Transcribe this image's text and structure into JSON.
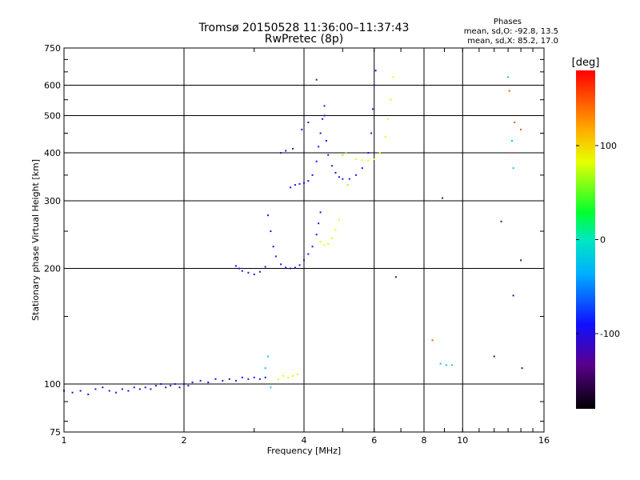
{
  "header": {
    "title_line1": "Tromsø 20150528 11:36:00–11:37:43",
    "title_line2": "RwPretec (8p)"
  },
  "phases_info": {
    "heading": "Phases",
    "line1": "mean, sd,O: -92.8, 13.5",
    "line2": "mean, sd,X:  85.2, 17.0"
  },
  "colorbar": {
    "label": "[deg]",
    "range": [
      -180,
      180
    ],
    "ticks": [
      {
        "value": 100,
        "label": "100"
      },
      {
        "value": 0,
        "label": "0"
      },
      {
        "value": -100,
        "label": "-100"
      }
    ]
  },
  "chart_data": {
    "type": "scatter",
    "title": "Tromsø 20150528 11:36:00–11:37:43",
    "subtitle": "RwPretec (8p)",
    "xlabel": "Frequency [MHz]",
    "ylabel": "Stationary phase Virtual Height [km]",
    "xscale": "log",
    "yscale": "log",
    "xlim": [
      1,
      16
    ],
    "ylim": [
      75,
      750
    ],
    "x_ticks": [
      1,
      2,
      4,
      6,
      8,
      10,
      16
    ],
    "y_ticks": [
      75,
      100,
      200,
      300,
      400,
      500,
      600,
      750
    ],
    "grid": true,
    "series": [
      {
        "color_value": -95,
        "points": [
          [
            1.0,
            96
          ],
          [
            1.05,
            95
          ],
          [
            1.1,
            96
          ],
          [
            1.15,
            94
          ],
          [
            1.2,
            97
          ],
          [
            1.25,
            98
          ],
          [
            1.3,
            96
          ],
          [
            1.35,
            95
          ],
          [
            1.4,
            97
          ],
          [
            1.45,
            96
          ],
          [
            1.5,
            98
          ],
          [
            1.55,
            97
          ],
          [
            1.6,
            98
          ],
          [
            1.65,
            97
          ],
          [
            1.7,
            99
          ],
          [
            1.75,
            100
          ],
          [
            1.8,
            98
          ],
          [
            1.85,
            99
          ],
          [
            1.9,
            100
          ],
          [
            1.95,
            98
          ],
          [
            2.0,
            100
          ],
          [
            2.05,
            99
          ],
          [
            2.1,
            101
          ],
          [
            2.2,
            102
          ],
          [
            2.3,
            101
          ],
          [
            2.4,
            103
          ],
          [
            2.5,
            102
          ],
          [
            2.6,
            103
          ],
          [
            2.7,
            102
          ],
          [
            2.8,
            104
          ],
          [
            2.9,
            103
          ],
          [
            3.0,
            104
          ],
          [
            3.1,
            103
          ],
          [
            3.2,
            104
          ]
        ]
      },
      {
        "color_value": -95,
        "points": [
          [
            2.7,
            203
          ],
          [
            2.75,
            200
          ],
          [
            2.8,
            197
          ],
          [
            2.9,
            195
          ],
          [
            3.0,
            193
          ],
          [
            3.1,
            196
          ],
          [
            3.2,
            202
          ]
        ]
      },
      {
        "color_value": -95,
        "points": [
          [
            3.25,
            275
          ],
          [
            3.3,
            250
          ],
          [
            3.35,
            228
          ],
          [
            3.4,
            215
          ],
          [
            3.5,
            205
          ],
          [
            3.6,
            201
          ],
          [
            3.7,
            200
          ],
          [
            3.8,
            201
          ],
          [
            3.9,
            204
          ],
          [
            4.0,
            210
          ],
          [
            4.1,
            218
          ],
          [
            4.2,
            228
          ],
          [
            4.3,
            245
          ],
          [
            4.35,
            262
          ],
          [
            4.4,
            280
          ]
        ]
      },
      {
        "color_value": -95,
        "points": [
          [
            3.7,
            325
          ],
          [
            3.8,
            330
          ],
          [
            3.9,
            332
          ],
          [
            4.0,
            334
          ],
          [
            4.1,
            338
          ],
          [
            4.2,
            350
          ],
          [
            4.3,
            380
          ],
          [
            4.35,
            415
          ],
          [
            4.4,
            450
          ],
          [
            4.45,
            490
          ],
          [
            4.5,
            530
          ]
        ]
      },
      {
        "color_value": -95,
        "points": [
          [
            4.5,
            500
          ],
          [
            4.55,
            430
          ],
          [
            4.6,
            395
          ],
          [
            4.7,
            370
          ],
          [
            4.8,
            355
          ],
          [
            4.9,
            346
          ],
          [
            5.0,
            342
          ],
          [
            5.2,
            342
          ],
          [
            5.4,
            350
          ],
          [
            5.6,
            365
          ],
          [
            5.8,
            400
          ],
          [
            5.9,
            450
          ],
          [
            5.95,
            520
          ],
          [
            6.0,
            600
          ],
          [
            6.05,
            655
          ]
        ]
      },
      {
        "color_value": -100,
        "points": [
          [
            3.5,
            400
          ],
          [
            3.6,
            405
          ],
          [
            3.75,
            410
          ],
          [
            3.95,
            460
          ],
          [
            4.1,
            480
          ],
          [
            4.3,
            620
          ]
        ]
      },
      {
        "color_value": 80,
        "points": [
          [
            3.45,
            103
          ],
          [
            3.55,
            105
          ],
          [
            3.65,
            104
          ],
          [
            3.75,
            105
          ],
          [
            3.85,
            106
          ]
        ]
      },
      {
        "color_value": 80,
        "points": [
          [
            4.4,
            235
          ],
          [
            4.5,
            230
          ],
          [
            4.6,
            232
          ],
          [
            4.7,
            240
          ],
          [
            4.8,
            252
          ],
          [
            4.9,
            268
          ]
        ]
      },
      {
        "color_value": 80,
        "points": [
          [
            5.4,
            385
          ],
          [
            5.6,
            383
          ],
          [
            5.8,
            382
          ],
          [
            6.0,
            385
          ],
          [
            6.2,
            400
          ],
          [
            6.4,
            440
          ],
          [
            6.5,
            490
          ],
          [
            6.6,
            550
          ],
          [
            6.7,
            630
          ]
        ]
      },
      {
        "color_value": 60,
        "points": [
          [
            5.0,
            395
          ],
          [
            5.1,
            400
          ],
          [
            5.15,
            330
          ]
        ]
      },
      {
        "color_value": -20,
        "points": [
          [
            3.2,
            110
          ],
          [
            3.25,
            118
          ],
          [
            3.3,
            98
          ],
          [
            8.8,
            113
          ],
          [
            9.1,
            112
          ],
          [
            9.4,
            112
          ],
          [
            13.0,
            630
          ],
          [
            13.3,
            430
          ],
          [
            13.4,
            365
          ]
        ]
      },
      {
        "color_value": 150,
        "points": [
          [
            13.1,
            580
          ],
          [
            13.5,
            480
          ],
          [
            14.0,
            460
          ],
          [
            8.4,
            130
          ],
          [
            13.3,
            400
          ]
        ]
      },
      {
        "color_value": -140,
        "points": [
          [
            14.0,
            210
          ],
          [
            13.4,
            170
          ],
          [
            14.1,
            110
          ],
          [
            8.9,
            305
          ],
          [
            6.8,
            190
          ],
          [
            12.5,
            265
          ],
          [
            12.0,
            118
          ]
        ]
      }
    ]
  }
}
